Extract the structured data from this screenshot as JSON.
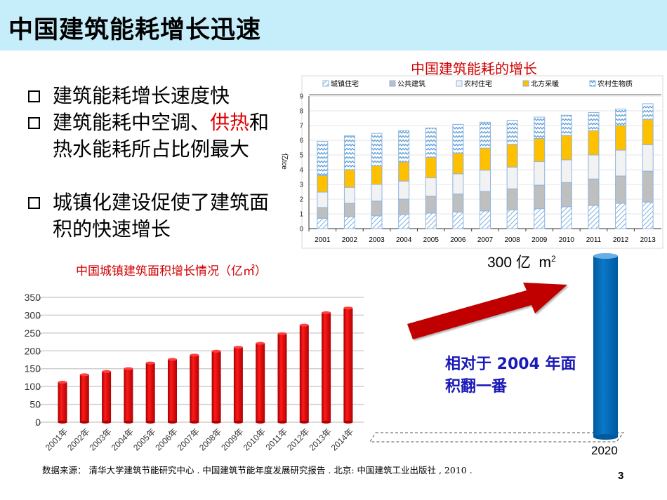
{
  "title": "中国建筑能耗增长迅速",
  "bullets": [
    {
      "text": "建筑能耗增长速度快"
    },
    {
      "text_before": "建筑能耗中空调、",
      "highlight": "供热",
      "text_after": "和热水能耗所占比例最大",
      "highlight_color": "#e00000"
    },
    {
      "text": "城镇化建设促使了建筑面积的快速增长"
    }
  ],
  "colors": {
    "title_bar": "#c6eefa",
    "chart_title": "#d00000",
    "bar": "#e00000",
    "cylinder": "#0070c0",
    "arrow": "#c00000",
    "callout": "#1a1ab8"
  },
  "chart_data": [
    {
      "type": "bar",
      "stacked": true,
      "title": "中国建筑能耗的增长",
      "ylabel": "亿tce",
      "ylim": [
        0,
        9
      ],
      "yticks": [
        0,
        1,
        2,
        3,
        4,
        5,
        6,
        7,
        8,
        9
      ],
      "grid": true,
      "legend": "top",
      "categories": [
        "2001",
        "2002",
        "2003",
        "2004",
        "2005",
        "2006",
        "2007",
        "2008",
        "2009",
        "2010",
        "2011",
        "2012",
        "2013"
      ],
      "series": [
        {
          "name": "城镇住宅",
          "pattern": "diagonal-hatch",
          "color": "#5b9bd5",
          "values": [
            0.7,
            0.82,
            0.87,
            0.95,
            1.05,
            1.13,
            1.2,
            1.28,
            1.35,
            1.48,
            1.57,
            1.72,
            1.8
          ]
        },
        {
          "name": "公共建筑",
          "color": "#bfbfbf",
          "values": [
            0.73,
            0.9,
            1.0,
            1.05,
            1.15,
            1.22,
            1.32,
            1.42,
            1.6,
            1.65,
            1.8,
            1.85,
            2.1
          ]
        },
        {
          "name": "农村住宅",
          "color": "#f2f2f2",
          "values": [
            1.05,
            1.08,
            1.13,
            1.23,
            1.25,
            1.37,
            1.45,
            1.48,
            1.6,
            1.54,
            1.63,
            1.76,
            1.8
          ]
        },
        {
          "name": "北方采暖",
          "color": "#ffc000",
          "values": [
            1.12,
            1.2,
            1.27,
            1.3,
            1.4,
            1.41,
            1.5,
            1.54,
            1.57,
            1.66,
            1.65,
            1.67,
            1.72
          ]
        },
        {
          "name": "农村生物质",
          "pattern": "zigzag",
          "color": "#5b9bd5",
          "values": [
            2.33,
            2.3,
            2.2,
            2.12,
            1.98,
            1.95,
            1.75,
            1.63,
            1.45,
            1.37,
            1.23,
            1.12,
            1.06
          ]
        }
      ]
    },
    {
      "type": "bar",
      "title": "中国城镇建筑面积增长情况（亿㎡）",
      "ylim": [
        0,
        350
      ],
      "yticks": [
        0,
        50,
        100,
        150,
        200,
        250,
        300,
        350
      ],
      "grid": true,
      "categories": [
        "2001年",
        "2002年",
        "2003年",
        "2004年",
        "2005年",
        "2006年",
        "2007年",
        "2008年",
        "2009年",
        "2010年",
        "2011年",
        "2012年",
        "2013年",
        "2014年"
      ],
      "values": [
        112,
        133,
        142,
        150,
        166,
        176,
        188,
        199,
        210,
        221,
        248,
        272,
        307,
        320
      ]
    }
  ],
  "projection": {
    "label_value": "300 亿",
    "label_unit": "m",
    "label_sup": "2",
    "year": "2020"
  },
  "callout": {
    "line1": "相对于 2004 年面",
    "line2": "积翻一番"
  },
  "source": "数据来源： 清华大学建筑节能研究中心 . 中国建筑节能年度发展研究报告 .  北京:  中国建筑工业出版社 , 2010 .",
  "page_number": "3"
}
